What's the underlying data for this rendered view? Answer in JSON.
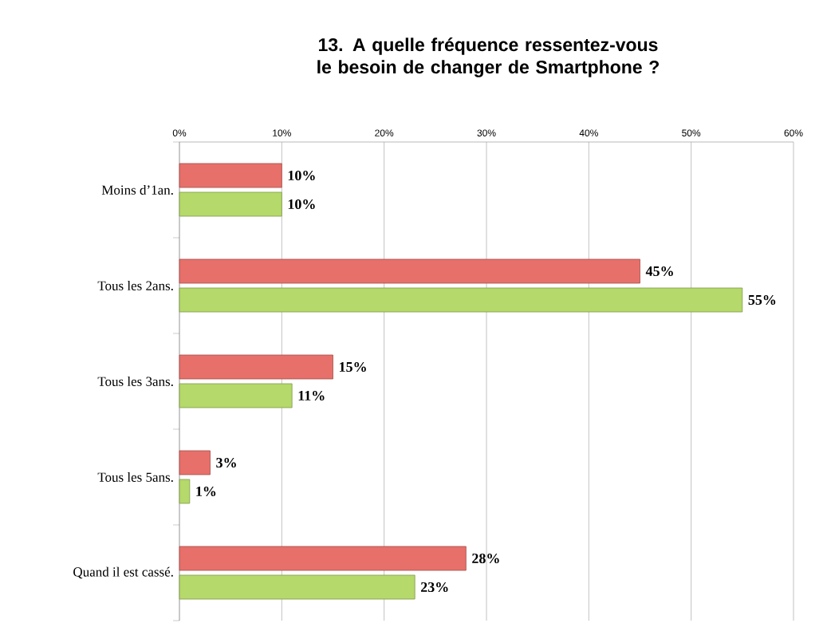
{
  "chart_data": {
    "type": "bar",
    "orientation": "horizontal",
    "title": "13. A quelle fréquence ressentez-vous le besoin de changer de Smartphone ?",
    "categories": [
      "Moins d’1an.",
      "Tous les 2ans.",
      "Tous les 3ans.",
      "Tous les 5ans.",
      "Quand il est cassé."
    ],
    "series": [
      {
        "color": "#e8706a",
        "values": [
          10,
          45,
          15,
          3,
          28
        ],
        "value_labels": [
          "10%",
          "45%",
          "15%",
          "3%",
          "28%"
        ]
      },
      {
        "color": "#b5d96a",
        "values": [
          10,
          55,
          11,
          1,
          23
        ],
        "value_labels": [
          "10%",
          "55%",
          "11%",
          "1%",
          "23%"
        ]
      }
    ],
    "xlim": [
      0,
      60
    ],
    "xticks": [
      {
        "value": 0,
        "label": "0%"
      },
      {
        "value": 10,
        "label": "10%"
      },
      {
        "value": 20,
        "label": "20%"
      },
      {
        "value": 30,
        "label": "30%"
      },
      {
        "value": 40,
        "label": "40%"
      },
      {
        "value": 50,
        "label": "50%"
      },
      {
        "value": 60,
        "label": "60%"
      }
    ],
    "grid": "x"
  }
}
